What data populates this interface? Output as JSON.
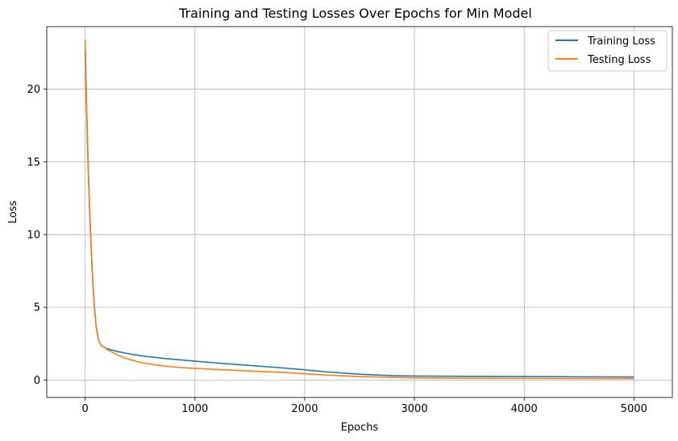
{
  "chart_data": {
    "type": "line",
    "title": "Training and Testing Losses Over Epochs for Min Model",
    "xlabel": "Epochs",
    "ylabel": "Loss",
    "xlim": [
      -350,
      5350
    ],
    "ylim": [
      -1.2,
      24.3
    ],
    "xticks": [
      0,
      1000,
      2000,
      3000,
      4000,
      5000
    ],
    "xtick_labels": [
      "0",
      "1000",
      "2000",
      "3000",
      "4000",
      "5000"
    ],
    "yticks": [
      0,
      5,
      10,
      15,
      20
    ],
    "ytick_labels": [
      "0",
      "5",
      "10",
      "15",
      "20"
    ],
    "grid": true,
    "legend_position": "top-right",
    "series": [
      {
        "name": "Training Loss",
        "color": "#1f77b4",
        "x": [
          0,
          10,
          20,
          30,
          40,
          50,
          60,
          70,
          80,
          90,
          100,
          110,
          120,
          130,
          140,
          150,
          175,
          200,
          250,
          300,
          400,
          500,
          600,
          700,
          800,
          1000,
          1200,
          1500,
          1800,
          2000,
          2200,
          2500,
          2800,
          3000,
          3500,
          4000,
          4500,
          5000
        ],
        "y": [
          22.6,
          19.5,
          16.5,
          14.0,
          11.8,
          9.9,
          8.2,
          6.7,
          5.5,
          4.5,
          3.7,
          3.2,
          2.85,
          2.6,
          2.45,
          2.35,
          2.25,
          2.15,
          2.05,
          1.95,
          1.8,
          1.68,
          1.58,
          1.5,
          1.43,
          1.3,
          1.17,
          1.0,
          0.83,
          0.7,
          0.56,
          0.4,
          0.3,
          0.27,
          0.25,
          0.24,
          0.22,
          0.21
        ]
      },
      {
        "name": "Testing Loss",
        "color": "#ff7f0e",
        "x": [
          0,
          10,
          20,
          30,
          40,
          50,
          60,
          70,
          80,
          90,
          100,
          110,
          120,
          130,
          140,
          150,
          175,
          200,
          250,
          300,
          400,
          500,
          600,
          700,
          800,
          1000,
          1200,
          1500,
          1800,
          2000,
          2200,
          2500,
          2800,
          3000,
          3500,
          4000,
          4500,
          5000
        ],
        "y": [
          23.4,
          20.2,
          17.0,
          14.3,
          12.0,
          10.0,
          8.3,
          6.8,
          5.5,
          4.5,
          3.7,
          3.2,
          2.85,
          2.6,
          2.45,
          2.35,
          2.25,
          2.1,
          1.9,
          1.7,
          1.42,
          1.22,
          1.08,
          0.98,
          0.9,
          0.8,
          0.72,
          0.62,
          0.52,
          0.43,
          0.34,
          0.24,
          0.18,
          0.15,
          0.12,
          0.11,
          0.1,
          0.1
        ]
      }
    ]
  }
}
